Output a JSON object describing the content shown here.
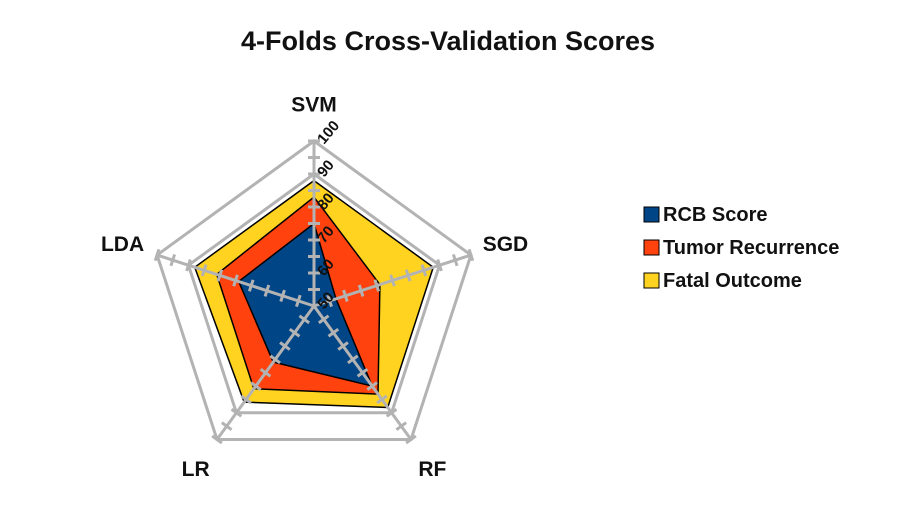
{
  "chart_data": {
    "type": "radar",
    "title": "4-Folds Cross-Validation Scores",
    "axes": [
      "SVM",
      "SGD",
      "RF",
      "LR",
      "LDA"
    ],
    "rlim": [
      50,
      100
    ],
    "ticks": [
      "50",
      "60",
      "70",
      "80",
      "90",
      "100"
    ],
    "grid": true,
    "legend_position": "right",
    "series": [
      {
        "name": "Fatal Outcome",
        "color": "#ffd320",
        "values": [
          88,
          88,
          88,
          86,
          88
        ]
      },
      {
        "name": "Tumor Recurrence",
        "color": "#ff420e",
        "values": [
          83,
          71,
          83,
          81,
          81
        ]
      },
      {
        "name": "RCB Score",
        "color": "#004586",
        "values": [
          75,
          57,
          80,
          71,
          74
        ]
      }
    ],
    "legend_order": [
      "RCB Score",
      "Tumor Recurrence",
      "Fatal Outcome"
    ]
  }
}
